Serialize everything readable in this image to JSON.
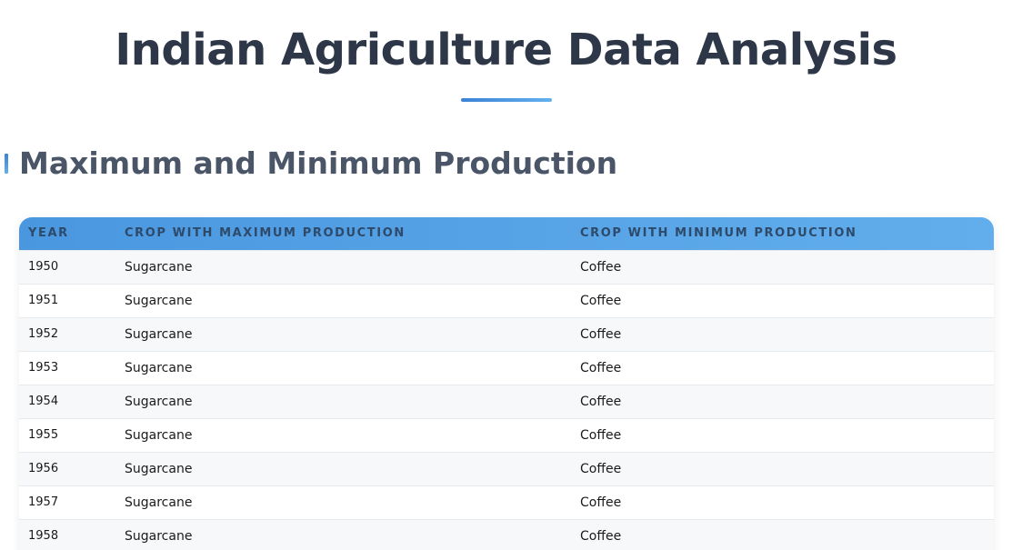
{
  "header": {
    "title": "Indian Agriculture Data Analysis"
  },
  "section": {
    "title": "Maximum and Minimum Production"
  },
  "table": {
    "columns": {
      "year": "Year",
      "max": "Crop with Maximum Production",
      "min": "Crop with Minimum Production"
    },
    "rows": [
      {
        "year": "1950",
        "max": "Sugarcane",
        "min": "Coffee"
      },
      {
        "year": "1951",
        "max": "Sugarcane",
        "min": "Coffee"
      },
      {
        "year": "1952",
        "max": "Sugarcane",
        "min": "Coffee"
      },
      {
        "year": "1953",
        "max": "Sugarcane",
        "min": "Coffee"
      },
      {
        "year": "1954",
        "max": "Sugarcane",
        "min": "Coffee"
      },
      {
        "year": "1955",
        "max": "Sugarcane",
        "min": "Coffee"
      },
      {
        "year": "1956",
        "max": "Sugarcane",
        "min": "Coffee"
      },
      {
        "year": "1957",
        "max": "Sugarcane",
        "min": "Coffee"
      },
      {
        "year": "1958",
        "max": "Sugarcane",
        "min": "Coffee"
      }
    ]
  },
  "colors": {
    "accent_start": "#3b82d6",
    "accent_end": "#63b0ee",
    "title": "#2d3748",
    "section_title": "#4a5568"
  }
}
